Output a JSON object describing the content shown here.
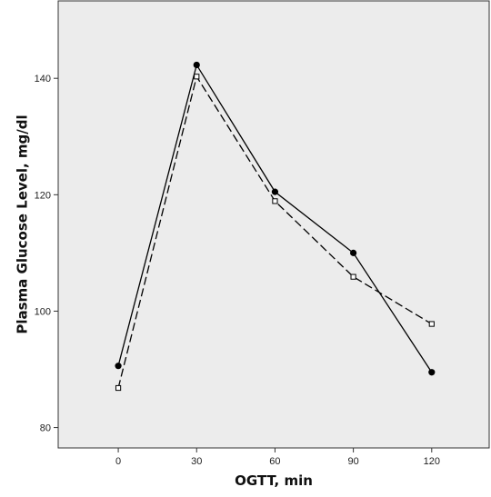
{
  "chart_data": {
    "type": "line",
    "title": "",
    "xlabel": "OGTT, min",
    "ylabel": "Plasma Glucose Level, mg/dl",
    "x": [
      0,
      30,
      60,
      90,
      120
    ],
    "x_ticks": [
      "0",
      "30",
      "60",
      "90",
      "120"
    ],
    "y_ticks": [
      "80",
      "100",
      "120",
      "140"
    ],
    "xlim": [
      -23,
      142
    ],
    "ylim": [
      76.5,
      153.3
    ],
    "grid": false,
    "legend": "none",
    "series": [
      {
        "values": [
          90.6,
          142.3,
          120.5,
          110.0,
          89.5
        ],
        "line_style": "solid",
        "marker": "filled-circle",
        "color": "#000000"
      },
      {
        "values": [
          86.8,
          140.3,
          118.9,
          105.9,
          97.8
        ],
        "line_style": "dashed",
        "marker": "open-square",
        "color": "#000000"
      }
    ],
    "colors": {
      "plot_background": "#ececec",
      "frame": "#333333"
    }
  }
}
